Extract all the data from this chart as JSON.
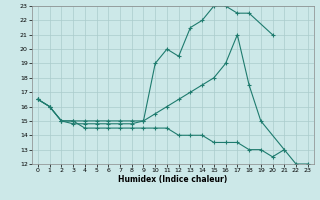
{
  "xlabel": "Humidex (Indice chaleur)",
  "xlim": [
    -0.5,
    23.5
  ],
  "ylim": [
    12,
    23
  ],
  "yticks": [
    12,
    13,
    14,
    15,
    16,
    17,
    18,
    19,
    20,
    21,
    22,
    23
  ],
  "xticks": [
    0,
    1,
    2,
    3,
    4,
    5,
    6,
    7,
    8,
    9,
    10,
    11,
    12,
    13,
    14,
    15,
    16,
    17,
    18,
    19,
    20,
    21,
    22,
    23
  ],
  "background_color": "#cce8e8",
  "grid_color": "#aacccc",
  "line_color": "#1e7b6e",
  "line1_x": [
    0,
    1,
    2,
    3,
    4,
    5,
    6,
    7,
    8,
    9,
    10,
    11,
    12,
    13,
    14,
    15,
    16,
    17,
    18,
    20
  ],
  "line1_y": [
    16.5,
    16.0,
    15.0,
    15.0,
    15.0,
    15.0,
    15.0,
    15.0,
    15.0,
    15.0,
    19.0,
    20.0,
    19.5,
    21.5,
    22.0,
    23.0,
    23.0,
    22.5,
    22.5,
    21.0
  ],
  "line2_x": [
    0,
    1,
    2,
    3,
    4,
    5,
    6,
    7,
    8,
    9,
    10,
    11,
    12,
    13,
    14,
    15,
    16,
    17,
    18,
    19,
    21
  ],
  "line2_y": [
    16.5,
    16.0,
    15.0,
    14.8,
    14.8,
    14.8,
    14.8,
    14.8,
    14.8,
    15.0,
    15.5,
    16.0,
    16.5,
    17.0,
    17.5,
    18.0,
    19.0,
    21.0,
    17.5,
    15.0,
    13.0
  ],
  "line3_x": [
    0,
    1,
    2,
    3,
    4,
    5,
    6,
    7,
    8,
    9,
    10,
    11,
    12,
    13,
    14,
    15,
    16,
    17,
    18,
    19,
    20,
    21,
    22,
    23
  ],
  "line3_y": [
    16.5,
    16.0,
    15.0,
    15.0,
    14.5,
    14.5,
    14.5,
    14.5,
    14.5,
    14.5,
    14.5,
    14.5,
    14.0,
    14.0,
    14.0,
    13.5,
    13.5,
    13.5,
    13.0,
    13.0,
    12.5,
    13.0,
    12.0,
    12.0
  ]
}
